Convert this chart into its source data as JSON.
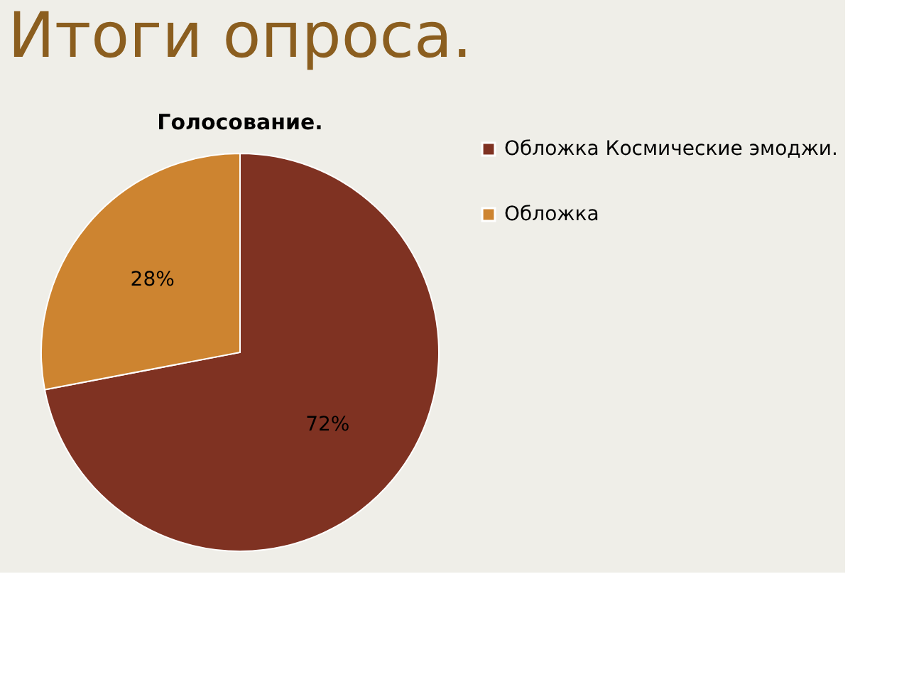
{
  "chart_data": {
    "type": "pie",
    "title": "Итоги опроса.",
    "subtitle": "Голосование.",
    "categories": [
      "Обложка Космические эмоджи.",
      "Обложка"
    ],
    "values": [
      72,
      28
    ],
    "colors": [
      "#7f3222",
      "#cd8430"
    ],
    "value_labels": [
      "72%",
      "28%"
    ],
    "legend": "right"
  }
}
